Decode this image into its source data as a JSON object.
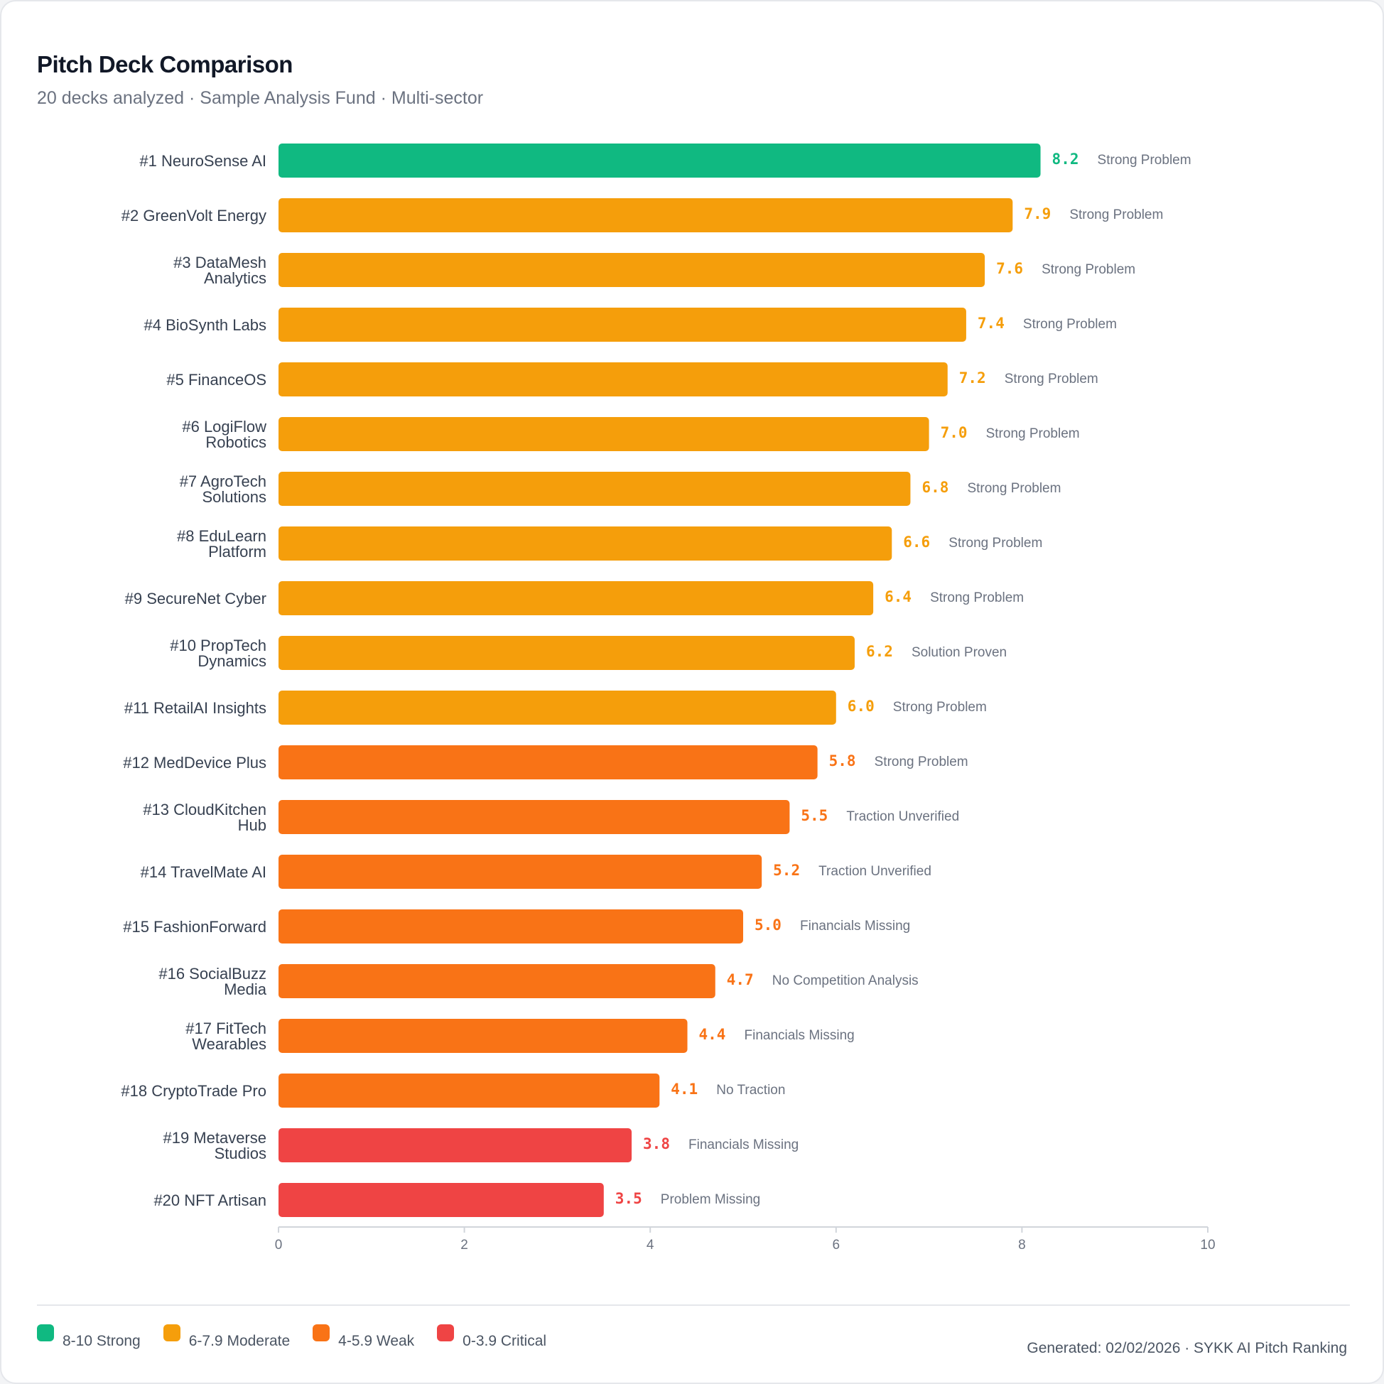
{
  "header": {
    "title": "Pitch Deck Comparison",
    "subtitle": "20 decks analyzed · Sample Analysis Fund · Multi-sector"
  },
  "chart_data": {
    "type": "bar",
    "orientation": "horizontal",
    "title": "Pitch Deck Comparison",
    "xlabel": "",
    "ylabel": "",
    "xlim": [
      0,
      10
    ],
    "x_ticks": [
      0,
      2,
      4,
      6,
      8,
      10
    ],
    "grid": false,
    "legend_position": "bottom-left",
    "categories": [
      [
        "#1 NeuroSense AI"
      ],
      [
        "#2 GreenVolt Energy"
      ],
      [
        "#3 DataMesh",
        "Analytics"
      ],
      [
        "#4 BioSynth Labs"
      ],
      [
        "#5 FinanceOS"
      ],
      [
        "#6 LogiFlow",
        "Robotics"
      ],
      [
        "#7 AgroTech",
        "Solutions"
      ],
      [
        "#8 EduLearn",
        "Platform"
      ],
      [
        "#9 SecureNet Cyber"
      ],
      [
        "#10 PropTech",
        "Dynamics"
      ],
      [
        "#11 RetailAI Insights"
      ],
      [
        "#12 MedDevice Plus"
      ],
      [
        "#13 CloudKitchen",
        "Hub"
      ],
      [
        "#14 TravelMate AI"
      ],
      [
        "#15 FashionForward"
      ],
      [
        "#16 SocialBuzz",
        "Media"
      ],
      [
        "#17 FitTech",
        "Wearables"
      ],
      [
        "#18 CryptoTrade Pro"
      ],
      [
        "#19 Metaverse",
        "Studios"
      ],
      [
        "#20 NFT Artisan"
      ]
    ],
    "values": [
      8.2,
      7.9,
      7.6,
      7.4,
      7.2,
      7.0,
      6.8,
      6.6,
      6.4,
      6.2,
      6.0,
      5.8,
      5.5,
      5.2,
      5.0,
      4.7,
      4.4,
      4.1,
      3.8,
      3.5
    ],
    "value_labels": [
      "8.2",
      "7.9",
      "7.6",
      "7.4",
      "7.2",
      "7.0",
      "6.8",
      "6.6",
      "6.4",
      "6.2",
      "6.0",
      "5.8",
      "5.5",
      "5.2",
      "5.0",
      "4.7",
      "4.4",
      "4.1",
      "3.8",
      "3.5"
    ],
    "annotations": [
      "Strong Problem",
      "Strong Problem",
      "Strong Problem",
      "Strong Problem",
      "Strong Problem",
      "Strong Problem",
      "Strong Problem",
      "Strong Problem",
      "Strong Problem",
      "Solution Proven",
      "Strong Problem",
      "Strong Problem",
      "Traction Unverified",
      "Traction Unverified",
      "Financials Missing",
      "No Competition Analysis",
      "Financials Missing",
      "No Traction",
      "Financials Missing",
      "Problem Missing"
    ],
    "score_bands": [
      {
        "label": "8-10 Strong",
        "min": 8,
        "color": "#10b981"
      },
      {
        "label": "6-7.9 Moderate",
        "min": 6,
        "color": "#f59e0b"
      },
      {
        "label": "4-5.9 Weak",
        "min": 4,
        "color": "#f97316"
      },
      {
        "label": "0-3.9 Critical",
        "min": 0,
        "color": "#ef4444"
      }
    ]
  },
  "legend": [
    {
      "label": "8-10 Strong",
      "color": "#10b981"
    },
    {
      "label": "6-7.9 Moderate",
      "color": "#f59e0b"
    },
    {
      "label": "4-5.9 Weak",
      "color": "#f97316"
    },
    {
      "label": "0-3.9 Critical",
      "color": "#ef4444"
    }
  ],
  "footer": {
    "text": "Generated: 02/02/2026 · SYKK AI Pitch Ranking"
  }
}
